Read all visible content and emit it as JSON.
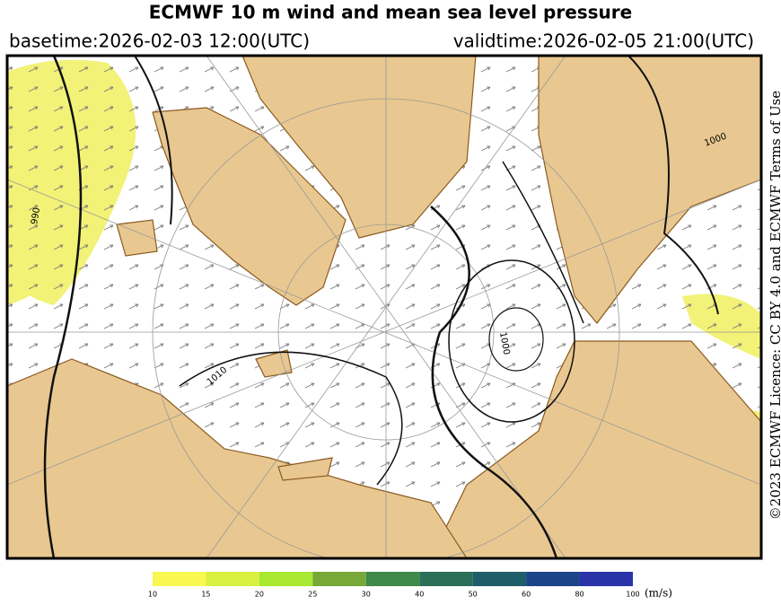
{
  "header": {
    "title": "ECMWF 10 m wind and mean sea level pressure",
    "basetime": "basetime:2026-02-03 12:00(UTC)",
    "validtime": "validtime:2026-02-05 21:00(UTC)"
  },
  "licence": "©2023 ECMWF Licence: CC BY 4.0 and ECMWF Terms of Use",
  "isobar_labels": [
    "1000",
    "1010",
    "990",
    "1000"
  ],
  "colorbar": {
    "ticks": [
      10,
      15,
      20,
      25,
      30,
      40,
      50,
      60,
      80,
      100
    ],
    "colors": [
      "#f8f850",
      "#d8f040",
      "#a8e830",
      "#78a838",
      "#3f8a48",
      "#2a7058",
      "#1e5e6a",
      "#1c4488",
      "#2a34a8"
    ],
    "unit": "(m/s)"
  }
}
